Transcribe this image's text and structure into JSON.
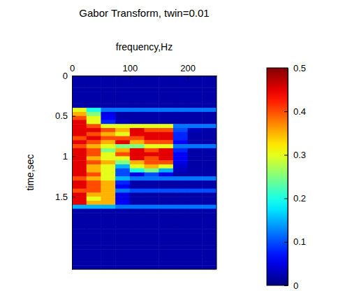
{
  "chart_data": {
    "type": "heatmap",
    "title": "Gabor Transform, twin=0.01",
    "x_label": "frequency,Hz",
    "y_label": "time,sec",
    "color": "jet",
    "xlim": [
      0,
      250
    ],
    "xticks": [
      0,
      100,
      200
    ],
    "ylim": [
      0,
      2.4
    ],
    "yticks": [
      0,
      0.5,
      1,
      1.5
    ],
    "x_edges": [
      0,
      25,
      50,
      75,
      100,
      125,
      150,
      175,
      200,
      225,
      250
    ],
    "y_edges": [
      0,
      0.05,
      0.1,
      0.15,
      0.2,
      0.25,
      0.3,
      0.35,
      0.4,
      0.45,
      0.5,
      0.55,
      0.6,
      0.65,
      0.7,
      0.75,
      0.8,
      0.85,
      0.9,
      0.95,
      1,
      1.05,
      1.1,
      1.15,
      1.2,
      1.25,
      1.3,
      1.35,
      1.4,
      1.45,
      1.5,
      1.55,
      1.6,
      1.65,
      1.7,
      1.75,
      1.8,
      1.85,
      1.9,
      1.95,
      2,
      2.05,
      2.1,
      2.15,
      2.2,
      2.25,
      2.3,
      2.35,
      2.4
    ],
    "cells": [
      [
        0.02,
        0.02,
        0.02,
        0.02,
        0.02,
        0.02,
        0.02,
        0.02,
        0.02,
        0.02
      ],
      [
        0.02,
        0.02,
        0.02,
        0.02,
        0.02,
        0.02,
        0.02,
        0.02,
        0.02,
        0.02
      ],
      [
        0.02,
        0.02,
        0.02,
        0.02,
        0.02,
        0.02,
        0.02,
        0.02,
        0.02,
        0.02
      ],
      [
        0.02,
        0.02,
        0.02,
        0.02,
        0.02,
        0.02,
        0.02,
        0.02,
        0.02,
        0.02
      ],
      [
        0.02,
        0.02,
        0.02,
        0.02,
        0.02,
        0.02,
        0.02,
        0.02,
        0.02,
        0.02
      ],
      [
        0.02,
        0.02,
        0.02,
        0.02,
        0.02,
        0.02,
        0.02,
        0.02,
        0.02,
        0.02
      ],
      [
        0.02,
        0.02,
        0.02,
        0.02,
        0.02,
        0.02,
        0.02,
        0.02,
        0.02,
        0.02
      ],
      [
        0.02,
        0.02,
        0.02,
        0.02,
        0.02,
        0.02,
        0.02,
        0.02,
        0.02,
        0.02
      ],
      [
        0.3,
        0.2,
        0.12,
        0.12,
        0.12,
        0.12,
        0.12,
        0.12,
        0.12,
        0.12
      ],
      [
        0.35,
        0.25,
        0.05,
        0.02,
        0.02,
        0.02,
        0.02,
        0.02,
        0.02,
        0.02
      ],
      [
        0.4,
        0.3,
        0.06,
        0.02,
        0.02,
        0.02,
        0.02,
        0.02,
        0.02,
        0.02
      ],
      [
        0.45,
        0.3,
        0.08,
        0.03,
        0.02,
        0.02,
        0.02,
        0.02,
        0.02,
        0.02
      ],
      [
        0.45,
        0.4,
        0.3,
        0.3,
        0.3,
        0.3,
        0.3,
        0.12,
        0.12,
        0.12
      ],
      [
        0.45,
        0.45,
        0.4,
        0.35,
        0.45,
        0.4,
        0.4,
        0.1,
        0.03,
        0.02
      ],
      [
        0.45,
        0.4,
        0.35,
        0.3,
        0.45,
        0.45,
        0.45,
        0.08,
        0.02,
        0.02
      ],
      [
        0.4,
        0.45,
        0.4,
        0.4,
        0.4,
        0.45,
        0.45,
        0.08,
        0.02,
        0.02
      ],
      [
        0.45,
        0.4,
        0.35,
        0.45,
        0.35,
        0.4,
        0.4,
        0.06,
        0.02,
        0.02
      ],
      [
        0.4,
        0.35,
        0.3,
        0.25,
        0.25,
        0.3,
        0.3,
        0.12,
        0.12,
        0.12
      ],
      [
        0.45,
        0.4,
        0.25,
        0.35,
        0.45,
        0.4,
        0.45,
        0.08,
        0.02,
        0.02
      ],
      [
        0.45,
        0.4,
        0.3,
        0.4,
        0.45,
        0.45,
        0.45,
        0.06,
        0.02,
        0.02
      ],
      [
        0.45,
        0.35,
        0.3,
        0.3,
        0.45,
        0.4,
        0.45,
        0.06,
        0.02,
        0.02
      ],
      [
        0.45,
        0.4,
        0.35,
        0.25,
        0.35,
        0.4,
        0.4,
        0.05,
        0.02,
        0.02
      ],
      [
        0.45,
        0.35,
        0.3,
        0.15,
        0.3,
        0.35,
        0.3,
        0.04,
        0.02,
        0.02
      ],
      [
        0.45,
        0.35,
        0.3,
        0.1,
        0.2,
        0.25,
        0.15,
        0.03,
        0.02,
        0.02
      ],
      [
        0.45,
        0.4,
        0.3,
        0.1,
        0.05,
        0.1,
        0.05,
        0.02,
        0.02,
        0.02
      ],
      [
        0.4,
        0.35,
        0.3,
        0.15,
        0.12,
        0.12,
        0.12,
        0.12,
        0.12,
        0.12
      ],
      [
        0.45,
        0.4,
        0.35,
        0.08,
        0.02,
        0.02,
        0.02,
        0.02,
        0.02,
        0.02
      ],
      [
        0.45,
        0.4,
        0.35,
        0.06,
        0.02,
        0.02,
        0.02,
        0.02,
        0.02,
        0.02
      ],
      [
        0.4,
        0.4,
        0.35,
        0.12,
        0.1,
        0.1,
        0.1,
        0.1,
        0.1,
        0.1
      ],
      [
        0.45,
        0.35,
        0.35,
        0.05,
        0.02,
        0.02,
        0.02,
        0.02,
        0.02,
        0.02
      ],
      [
        0.45,
        0.3,
        0.35,
        0.05,
        0.02,
        0.02,
        0.02,
        0.02,
        0.02,
        0.02
      ],
      [
        0.45,
        0.35,
        0.35,
        0.06,
        0.02,
        0.02,
        0.02,
        0.02,
        0.02,
        0.02
      ],
      [
        0.15,
        0.15,
        0.15,
        0.12,
        0.12,
        0.12,
        0.12,
        0.12,
        0.12,
        0.12
      ],
      [
        0.02,
        0.02,
        0.02,
        0.02,
        0.02,
        0.02,
        0.02,
        0.02,
        0.02,
        0.02
      ],
      [
        0.02,
        0.02,
        0.02,
        0.02,
        0.02,
        0.02,
        0.02,
        0.02,
        0.02,
        0.02
      ],
      [
        0.02,
        0.02,
        0.02,
        0.02,
        0.02,
        0.02,
        0.02,
        0.02,
        0.02,
        0.02
      ],
      [
        0.02,
        0.02,
        0.02,
        0.02,
        0.02,
        0.02,
        0.02,
        0.02,
        0.02,
        0.02
      ],
      [
        0.02,
        0.02,
        0.02,
        0.02,
        0.02,
        0.02,
        0.02,
        0.02,
        0.02,
        0.02
      ],
      [
        0.02,
        0.02,
        0.02,
        0.02,
        0.02,
        0.02,
        0.02,
        0.02,
        0.02,
        0.02
      ],
      [
        0.02,
        0.02,
        0.02,
        0.02,
        0.02,
        0.02,
        0.02,
        0.02,
        0.02,
        0.02
      ],
      [
        0.02,
        0.02,
        0.02,
        0.02,
        0.02,
        0.02,
        0.02,
        0.02,
        0.02,
        0.02
      ],
      [
        0.02,
        0.02,
        0.02,
        0.02,
        0.02,
        0.02,
        0.02,
        0.02,
        0.02,
        0.02
      ],
      [
        0.02,
        0.02,
        0.02,
        0.02,
        0.02,
        0.02,
        0.02,
        0.02,
        0.02,
        0.02
      ],
      [
        0.02,
        0.02,
        0.02,
        0.02,
        0.02,
        0.02,
        0.02,
        0.02,
        0.02,
        0.02
      ],
      [
        0.02,
        0.02,
        0.02,
        0.02,
        0.02,
        0.02,
        0.02,
        0.02,
        0.02,
        0.02
      ],
      [
        0.02,
        0.02,
        0.02,
        0.02,
        0.02,
        0.02,
        0.02,
        0.02,
        0.02,
        0.02
      ],
      [
        0.02,
        0.02,
        0.02,
        0.02,
        0.02,
        0.02,
        0.02,
        0.02,
        0.02,
        0.02
      ],
      [
        0.02,
        0.02,
        0.02,
        0.02,
        0.02,
        0.02,
        0.02,
        0.02,
        0.02,
        0.02
      ]
    ],
    "colorbar_lim": [
      0,
      0.5
    ],
    "colorbar_ticks": [
      0,
      0.1,
      0.2,
      0.3,
      0.4,
      0.5
    ]
  }
}
